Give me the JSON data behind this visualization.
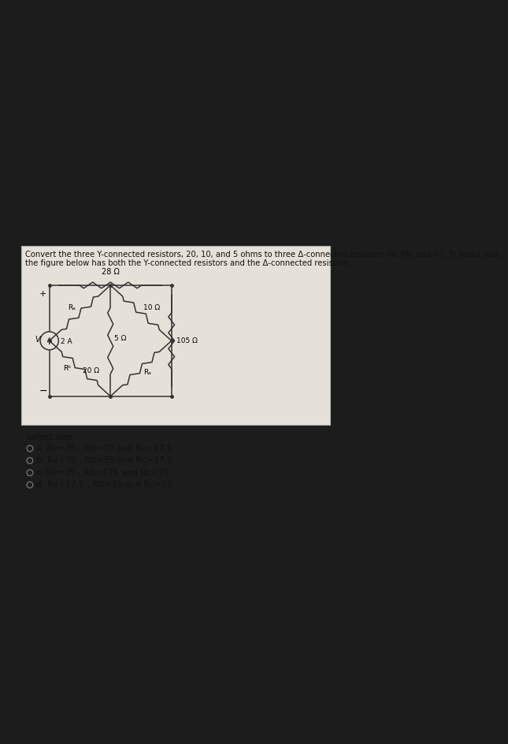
{
  "bg_color": "#1c1c1c",
  "panel_color": "#e6e1d8",
  "panel_border_color": "#b0b0b0",
  "title_line1": "Convert the three Y-connected resistors, 20, 10, and 5 ohms to three Δ-connected resistors Ra, Rb, and Rc. To assist you,",
  "title_line2": "the figure below has both the Y-connected resistors and the Δ-connected resistors.",
  "title_fontsize": 7.2,
  "label_28": "28 Ω",
  "label_20": "20 Ω",
  "label_10": "10 Ω",
  "label_5": "5 Ω",
  "label_105": "105 Ω",
  "label_2A": "2 A",
  "label_Rc": "Rₐ",
  "label_Rb": "Rᵇ",
  "label_Ra": "Rₐ",
  "label_V": "V",
  "label_plus": "+",
  "label_minus": "−",
  "select_text": "Select one:",
  "options": [
    "a. Ra=35 , Rb=70 and Rc=17.5",
    "b. Ra=70 , Rb=35 and Rc=17.5",
    "c. Ra=35 , Rb=175 and Rc=70",
    "d. Ra=17.5 , Rb=35 and Rc=70"
  ],
  "line_color": "#333333",
  "text_color": "#111111",
  "option_fontsize": 7.8,
  "select_fontsize": 8.0
}
